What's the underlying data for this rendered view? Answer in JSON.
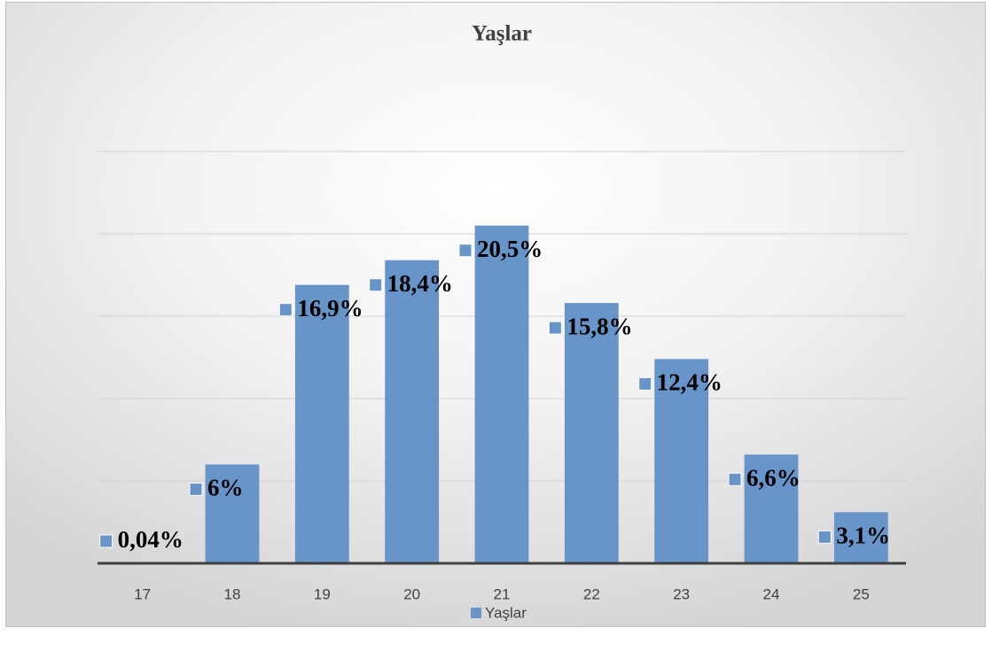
{
  "chart_data": {
    "type": "bar",
    "title": "Yaşlar",
    "categories": [
      "17",
      "18",
      "19",
      "20",
      "21",
      "22",
      "23",
      "24",
      "25"
    ],
    "series": [
      {
        "name": "Yaşlar",
        "color": "#6794c9",
        "values": [
          0.04,
          6,
          16.9,
          18.4,
          20.5,
          15.8,
          12.4,
          6.6,
          3.1
        ],
        "value_labels": [
          "0,04%",
          "6%",
          "16,9%",
          "18,4%",
          "20,5%",
          "15,8%",
          "12,4%",
          "6,6%",
          "3,1%"
        ]
      }
    ],
    "ylim": [
      0,
      25
    ],
    "yticks": [
      0,
      5,
      10,
      15,
      20,
      25
    ],
    "grid": true,
    "legend": "bottom"
  }
}
